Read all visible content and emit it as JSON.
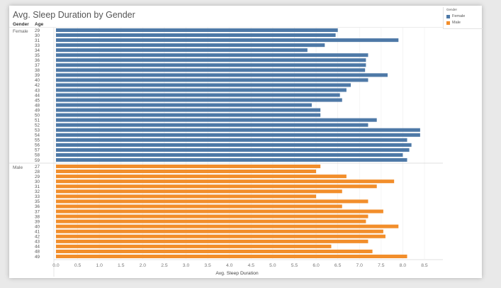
{
  "chart_data": {
    "type": "bar",
    "orientation": "horizontal",
    "title": "Avg. Sleep Duration by Gender",
    "row_headers": [
      "Gender",
      "Age"
    ],
    "xlabel": "Avg. Sleep Duration",
    "xlim": [
      0,
      8.6
    ],
    "xticks": [
      "0.0",
      "0.5",
      "1.0",
      "1.5",
      "2.0",
      "2.5",
      "3.0",
      "3.5",
      "4.0",
      "4.5",
      "5.0",
      "5.5",
      "6.0",
      "6.5",
      "7.0",
      "7.5",
      "8.0",
      "8.5"
    ],
    "grid": true,
    "legend_position": "top-right",
    "legend_title": "Gender",
    "groups": [
      {
        "name": "Female",
        "color": "#4e79a7",
        "categories": [
          "29",
          "30",
          "31",
          "33",
          "34",
          "35",
          "36",
          "37",
          "38",
          "39",
          "40",
          "42",
          "43",
          "44",
          "45",
          "48",
          "49",
          "50",
          "51",
          "52",
          "53",
          "54",
          "55",
          "56",
          "57",
          "58",
          "59"
        ],
        "values": [
          6.5,
          6.45,
          7.9,
          6.2,
          5.8,
          7.2,
          7.15,
          7.15,
          7.13,
          7.65,
          7.2,
          6.8,
          6.7,
          6.55,
          6.6,
          5.9,
          6.1,
          6.1,
          7.4,
          7.2,
          8.4,
          8.4,
          8.1,
          8.2,
          8.15,
          8.0,
          8.1
        ]
      },
      {
        "name": "Male",
        "color": "#f28e2b",
        "categories": [
          "27",
          "28",
          "29",
          "30",
          "31",
          "32",
          "33",
          "35",
          "36",
          "37",
          "38",
          "39",
          "40",
          "41",
          "42",
          "43",
          "44",
          "48",
          "49"
        ],
        "values": [
          6.1,
          6.0,
          6.7,
          7.8,
          7.4,
          6.6,
          6.0,
          7.2,
          6.6,
          7.55,
          7.2,
          7.15,
          7.9,
          7.55,
          7.6,
          7.2,
          6.35,
          7.3,
          8.1
        ]
      }
    ]
  }
}
